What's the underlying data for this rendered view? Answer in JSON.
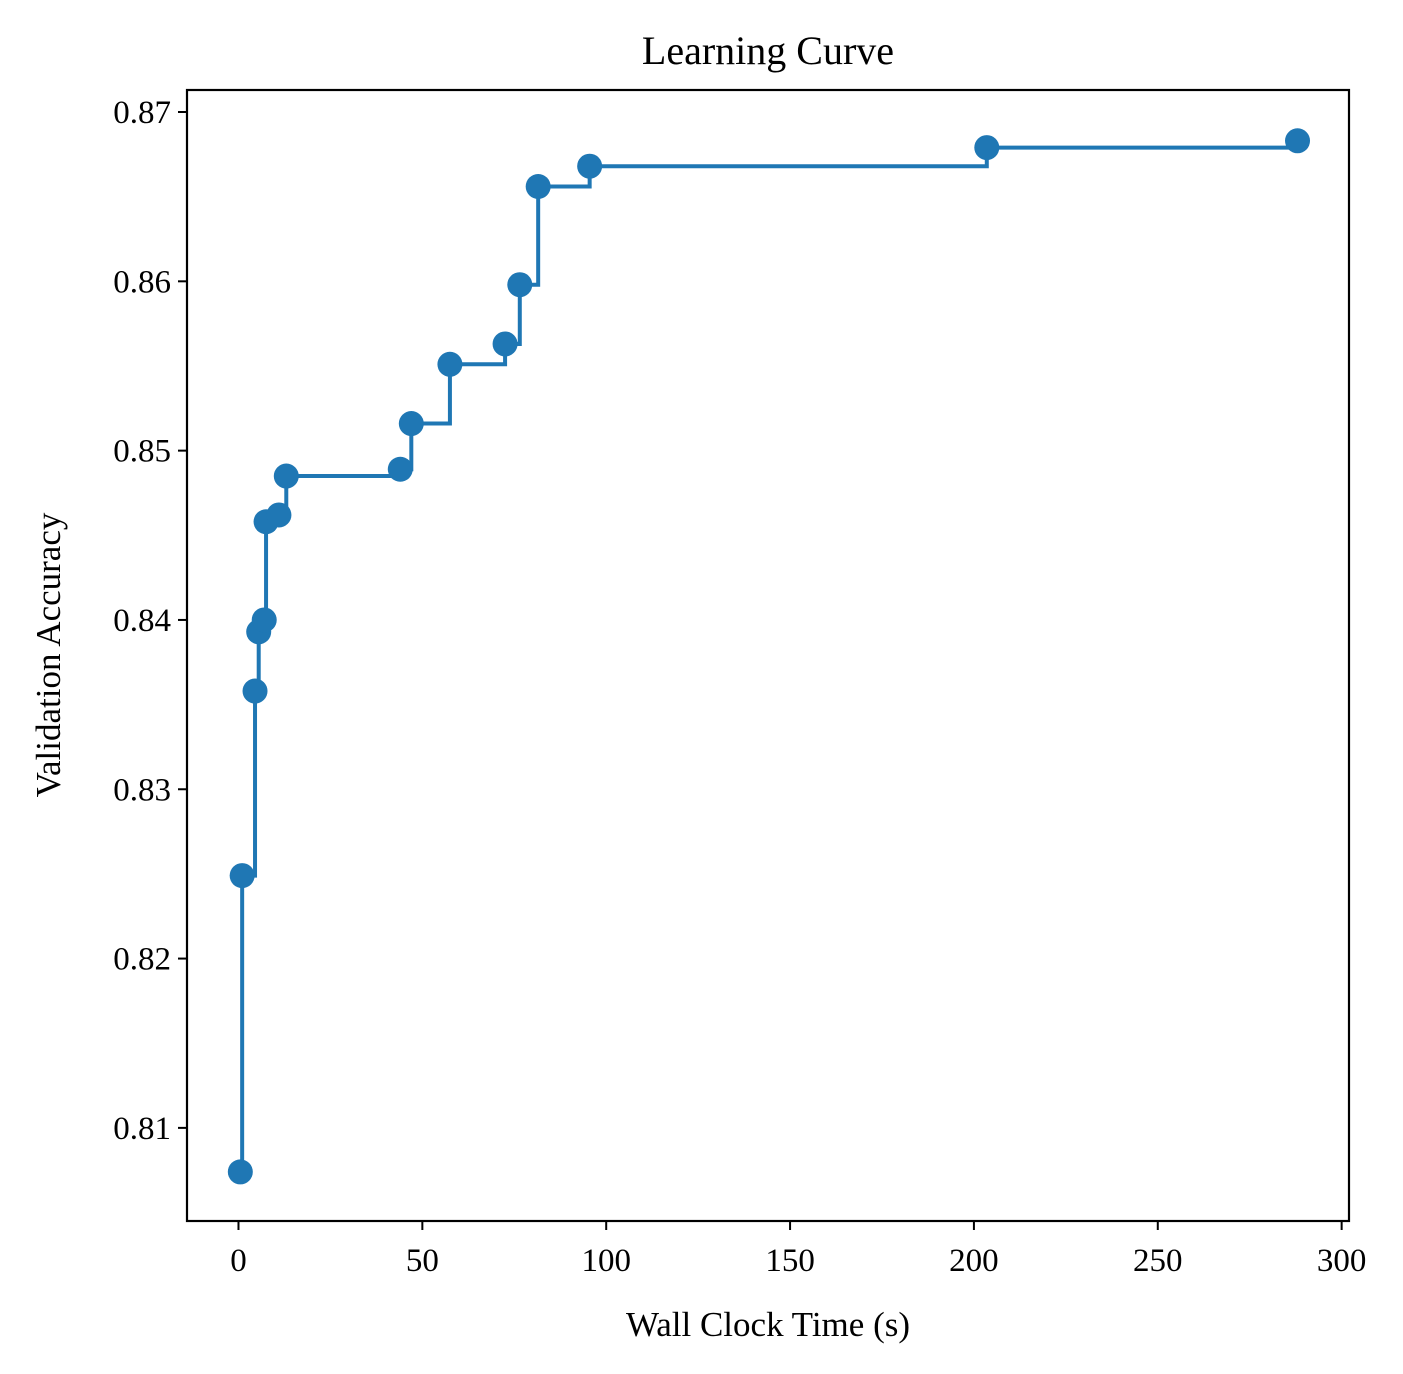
{
  "chart_data": {
    "type": "line",
    "step": "post",
    "markers": "circle",
    "title": "Learning Curve",
    "xlabel": "Wall Clock Time (s)",
    "ylabel": "Validation Accuracy",
    "xlim": [
      -14,
      302
    ],
    "ylim": [
      0.8045,
      0.8713
    ],
    "xticks": [
      0,
      50,
      100,
      150,
      200,
      250,
      300
    ],
    "yticks": [
      0.81,
      0.82,
      0.83,
      0.84,
      0.85,
      0.86,
      0.87
    ],
    "xtick_labels": [
      "0",
      "50",
      "100",
      "150",
      "200",
      "250",
      "300"
    ],
    "ytick_labels": [
      "0.81",
      "0.82",
      "0.83",
      "0.84",
      "0.85",
      "0.86",
      "0.87"
    ],
    "grid": false,
    "series_color": "#1f77b4",
    "series": [
      {
        "x": [
          0.5,
          1.0,
          4.5,
          5.5,
          7.0,
          7.5,
          11.0,
          13.0,
          44.0,
          47.0,
          57.5,
          72.5,
          76.5,
          81.5,
          95.5,
          203.5,
          288.0
        ],
        "y": [
          0.8074,
          0.8249,
          0.8358,
          0.8393,
          0.84,
          0.8458,
          0.8462,
          0.8485,
          0.8489,
          0.8516,
          0.8551,
          0.8563,
          0.8598,
          0.8656,
          0.8668,
          0.8679,
          0.8683
        ]
      }
    ]
  }
}
